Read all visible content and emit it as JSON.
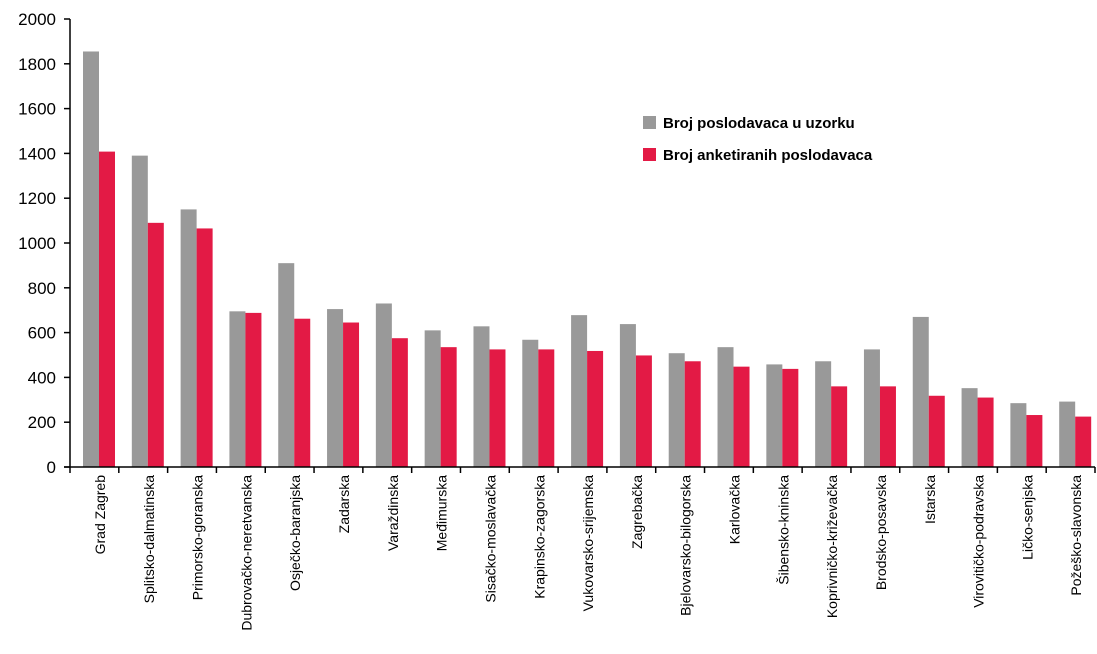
{
  "chart_data": {
    "type": "bar",
    "title": "",
    "xlabel": "",
    "ylabel": "",
    "ylim": [
      0,
      2000
    ],
    "yticks": [
      0,
      200,
      400,
      600,
      800,
      1000,
      1200,
      1400,
      1600,
      1800,
      2000
    ],
    "grid": false,
    "legend_position": "top-right",
    "categories": [
      "Grad Zagreb",
      "Splitsko-dalmatinska",
      "Primorsko-goranska",
      "Dubrovačko-neretvanska",
      "Osječko-baranjska",
      "Zadarska",
      "Varaždinska",
      "Međimurska",
      "Sisačko-moslavačka",
      "Krapinsko-zagorska",
      "Vukovarsko-srijemska",
      "Zagrebačka",
      "Bjelovarsko-bilogorska",
      "Karlovačka",
      "Šibensko-kninska",
      "Koprivničko-križevačka",
      "Brodsko-posavska",
      "Istarska",
      "Virovitičko-podravska",
      "Ličko-senjska",
      "Požeško-slavonska"
    ],
    "series": [
      {
        "name": "Broj poslodavaca u uzorku",
        "color": "#999999",
        "values": [
          1855,
          1390,
          1150,
          695,
          910,
          705,
          730,
          610,
          628,
          568,
          678,
          638,
          508,
          535,
          458,
          472,
          525,
          670,
          352,
          285,
          292
        ]
      },
      {
        "name": "Broj anketiranih poslodavaca",
        "color": "#e31a45",
        "values": [
          1408,
          1090,
          1065,
          688,
          662,
          645,
          575,
          535,
          525,
          525,
          518,
          498,
          472,
          448,
          438,
          360,
          360,
          318,
          310,
          232,
          225
        ]
      }
    ]
  }
}
